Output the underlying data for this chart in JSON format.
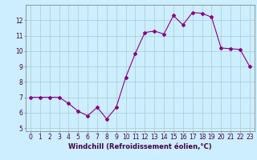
{
  "x": [
    0,
    1,
    2,
    3,
    4,
    5,
    6,
    7,
    8,
    9,
    10,
    11,
    12,
    13,
    14,
    15,
    16,
    17,
    18,
    19,
    20,
    21,
    22,
    23
  ],
  "y": [
    7.0,
    7.0,
    7.0,
    7.0,
    6.6,
    6.1,
    5.8,
    6.35,
    5.6,
    6.35,
    8.3,
    9.85,
    11.2,
    11.3,
    11.1,
    12.3,
    11.7,
    12.5,
    12.45,
    12.2,
    10.2,
    10.15,
    10.1,
    9.0
  ],
  "line_color": "#880088",
  "marker": "D",
  "marker_size": 2.0,
  "line_width": 0.8,
  "bg_color": "#cceeff",
  "grid_color": "#aacccc",
  "xlabel": "Windchill (Refroidissement éolien,°C)",
  "xlabel_fontsize": 6.0,
  "xtick_labels": [
    "0",
    "1",
    "2",
    "3",
    "4",
    "5",
    "6",
    "7",
    "8",
    "9",
    "10",
    "11",
    "12",
    "13",
    "14",
    "15",
    "16",
    "17",
    "18",
    "19",
    "20",
    "21",
    "22",
    "23"
  ],
  "ytick_labels": [
    "5",
    "6",
    "7",
    "8",
    "9",
    "10",
    "11",
    "12"
  ],
  "ylim": [
    4.8,
    13.0
  ],
  "xlim": [
    -0.5,
    23.5
  ],
  "tick_fontsize": 5.5,
  "xlabel_color": "#440044",
  "tick_color": "#440044"
}
